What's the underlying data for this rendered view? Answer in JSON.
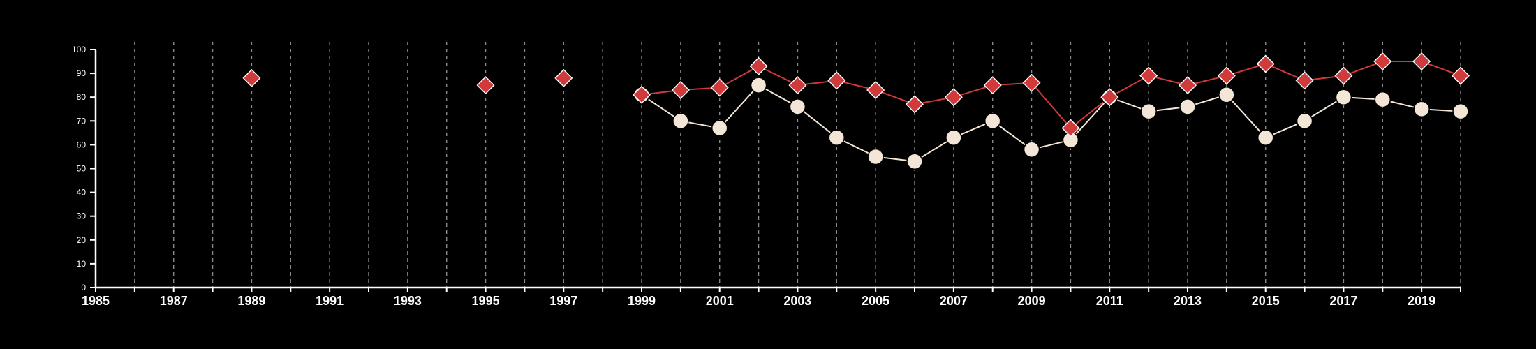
{
  "chart_data": {
    "type": "line",
    "title": "",
    "xlabel": "",
    "ylabel": "",
    "xlim": [
      1985,
      2020
    ],
    "ylim": [
      0,
      100
    ],
    "x_tick_labels": [
      1985,
      1987,
      1989,
      1991,
      1993,
      1995,
      1997,
      1999,
      2001,
      2003,
      2005,
      2007,
      2009,
      2011,
      2013,
      2015,
      2017,
      2019
    ],
    "y_tick_labels": [
      0,
      10,
      20,
      30,
      40,
      50,
      60,
      70,
      80,
      90,
      100
    ],
    "grid": "vertical dashed lines at every year",
    "legend": "none",
    "series": [
      {
        "marker": "circle",
        "color": "#f3e6d6",
        "points": [
          [
            1999,
            81
          ],
          [
            2000,
            70
          ],
          [
            2001,
            67
          ],
          [
            2002,
            85
          ],
          [
            2003,
            76
          ],
          [
            2004,
            63
          ],
          [
            2005,
            55
          ],
          [
            2006,
            53
          ],
          [
            2007,
            63
          ],
          [
            2008,
            70
          ],
          [
            2009,
            58
          ],
          [
            2010,
            62
          ],
          [
            2011,
            80
          ],
          [
            2012,
            74
          ],
          [
            2013,
            76
          ],
          [
            2014,
            81
          ],
          [
            2015,
            63
          ],
          [
            2016,
            70
          ],
          [
            2017,
            80
          ],
          [
            2018,
            79
          ],
          [
            2019,
            75
          ],
          [
            2020,
            74
          ]
        ]
      },
      {
        "marker": "diamond",
        "color": "#d03a3a",
        "points": [
          [
            1989,
            88
          ],
          [
            1995,
            85
          ],
          [
            1997,
            88
          ],
          [
            1999,
            81
          ],
          [
            2000,
            83
          ],
          [
            2001,
            84
          ],
          [
            2002,
            93
          ],
          [
            2003,
            85
          ],
          [
            2004,
            87
          ],
          [
            2005,
            83
          ],
          [
            2006,
            77
          ],
          [
            2007,
            80
          ],
          [
            2008,
            85
          ],
          [
            2009,
            86
          ],
          [
            2010,
            67
          ],
          [
            2011,
            80
          ],
          [
            2012,
            89
          ],
          [
            2013,
            85
          ],
          [
            2014,
            89
          ],
          [
            2015,
            94
          ],
          [
            2016,
            87
          ],
          [
            2017,
            89
          ],
          [
            2018,
            95
          ],
          [
            2019,
            95
          ],
          [
            2020,
            89
          ]
        ]
      }
    ]
  },
  "colors": {
    "background": "#000000",
    "axis": "#ffffff",
    "grid": "#8a8a8a",
    "series_1": "#f3e6d6",
    "series_2": "#d03a3a"
  }
}
